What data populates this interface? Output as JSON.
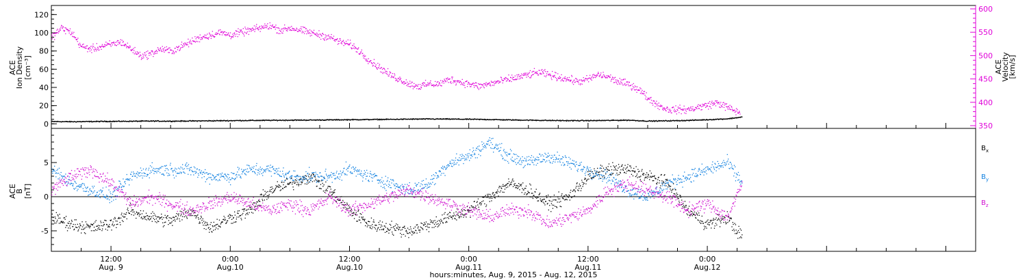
{
  "figure": {
    "xlabel": "hours:minutes, Aug.  9, 2015 - Aug. 12, 2015",
    "time_range_hours": [
      6.0,
      99.0
    ],
    "x_ticks": [
      {
        "t": 12,
        "time": "12:00",
        "date": "Aug. 9"
      },
      {
        "t": 24,
        "time": "0:00",
        "date": "Aug.10"
      },
      {
        "t": 36,
        "time": "12:00",
        "date": "Aug.10"
      },
      {
        "t": 48,
        "time": "0:00",
        "date": "Aug.11"
      },
      {
        "t": 60,
        "time": "12:00",
        "date": "Aug.11"
      },
      {
        "t": 72,
        "time": "0:00",
        "date": "Aug.12"
      }
    ]
  },
  "chart_data": [
    {
      "type": "scatter",
      "panel": "top",
      "ylabel_left": [
        "ACE",
        "Ion Density",
        "[cm⁻³]"
      ],
      "ylabel_right": [
        "ACE",
        "Velocity",
        "[km/s]"
      ],
      "ylim_left": [
        -5,
        130
      ],
      "yticks_left": [
        0,
        20,
        40,
        60,
        80,
        100,
        120
      ],
      "ylim_right": [
        350,
        600
      ],
      "yticks_right": [
        350,
        400,
        450,
        500,
        550,
        600
      ],
      "colors": {
        "density": "#000000",
        "velocity": "#e000d8"
      },
      "series": [
        {
          "name": "Ion Density",
          "axis": "left",
          "x_hours": [
            6,
            8,
            10,
            12,
            14,
            16,
            18,
            20,
            22,
            24,
            26,
            28,
            30,
            32,
            34,
            36,
            38,
            40,
            42,
            44,
            46,
            48,
            50,
            52,
            54,
            56,
            58,
            60,
            62,
            64,
            66,
            68,
            70,
            72,
            74,
            75.5
          ],
          "values": [
            3,
            2.8,
            3,
            3.2,
            3.3,
            3.5,
            3.4,
            3.6,
            3.8,
            4,
            4.2,
            4.3,
            4.5,
            4.6,
            4.8,
            5,
            5.2,
            5.4,
            5.6,
            5.8,
            5.7,
            5.5,
            5.2,
            4.8,
            4.5,
            4.2,
            4,
            4,
            4.2,
            4.5,
            3.5,
            3.8,
            4.2,
            5,
            6,
            8
          ]
        },
        {
          "name": "Velocity",
          "axis": "right",
          "x_hours": [
            6,
            7,
            8,
            9,
            10,
            11,
            12,
            13,
            14,
            15,
            16,
            17,
            18,
            19,
            20,
            21,
            22,
            23,
            24,
            25,
            26,
            27,
            28,
            29,
            30,
            31,
            32,
            33,
            34,
            35,
            36,
            37,
            38,
            39,
            40,
            41,
            42,
            43,
            44,
            45,
            46,
            47,
            48,
            49,
            50,
            51,
            52,
            53,
            54,
            55,
            56,
            57,
            58,
            59,
            60,
            61,
            62,
            63,
            64,
            65,
            66,
            67,
            68,
            69,
            70,
            71,
            72,
            73,
            74,
            75
          ],
          "values": [
            540,
            560,
            550,
            520,
            515,
            520,
            525,
            530,
            515,
            500,
            505,
            515,
            510,
            520,
            530,
            540,
            545,
            550,
            545,
            550,
            555,
            560,
            565,
            555,
            560,
            555,
            550,
            545,
            540,
            530,
            525,
            510,
            490,
            475,
            460,
            450,
            440,
            435,
            440,
            440,
            450,
            445,
            440,
            435,
            440,
            445,
            450,
            455,
            460,
            465,
            460,
            455,
            450,
            445,
            450,
            460,
            455,
            445,
            440,
            430,
            410,
            395,
            385,
            385,
            385,
            390,
            395,
            400,
            390,
            380
          ]
        }
      ]
    },
    {
      "type": "scatter",
      "panel": "bottom",
      "ylabel_left": [
        "ACE",
        "B",
        "[nT]"
      ],
      "ylim": [
        -8,
        10
      ],
      "yticks": [
        -5,
        0,
        5
      ],
      "colors": {
        "Bx": "#000000",
        "By": "#1080e0",
        "Bz": "#d010d0"
      },
      "series": [
        {
          "name": "Bx",
          "x_hours": [
            6,
            8,
            10,
            12,
            14,
            16,
            18,
            20,
            22,
            24,
            26,
            28,
            30,
            32,
            34,
            36,
            38,
            40,
            42,
            44,
            46,
            48,
            50,
            52,
            54,
            56,
            58,
            60,
            62,
            64,
            66,
            68,
            70,
            72,
            74,
            75.5
          ],
          "values": [
            -3,
            -4,
            -4.5,
            -4,
            -2,
            -3,
            -3.5,
            -2,
            -4.5,
            -3,
            -2,
            1,
            2,
            3,
            1,
            -2,
            -4,
            -4.5,
            -5,
            -4,
            -3,
            -2,
            0,
            2,
            1,
            -1,
            0,
            3,
            4,
            4,
            3,
            2,
            -2,
            -4,
            -3,
            -6
          ]
        },
        {
          "name": "By",
          "x_hours": [
            6,
            8,
            10,
            12,
            14,
            16,
            18,
            20,
            22,
            24,
            26,
            28,
            30,
            32,
            34,
            36,
            38,
            40,
            42,
            44,
            46,
            48,
            50,
            52,
            54,
            56,
            58,
            60,
            62,
            64,
            66,
            68,
            70,
            72,
            74,
            75.5
          ],
          "values": [
            4,
            2,
            1,
            0,
            3,
            4,
            4,
            4,
            3,
            3,
            4,
            4,
            3,
            3,
            3,
            4,
            3,
            2,
            1,
            2,
            5,
            6,
            8,
            6,
            5,
            6,
            5,
            4,
            3,
            1,
            0,
            2,
            3,
            4,
            5,
            2
          ]
        },
        {
          "name": "Bz",
          "x_hours": [
            6,
            8,
            10,
            12,
            14,
            16,
            18,
            20,
            22,
            24,
            26,
            28,
            30,
            32,
            34,
            36,
            38,
            40,
            42,
            44,
            46,
            48,
            50,
            52,
            54,
            56,
            58,
            60,
            62,
            64,
            66,
            68,
            70,
            72,
            74,
            75.5
          ],
          "values": [
            1,
            3,
            4,
            2,
            -1,
            0,
            -1,
            -2,
            -1,
            0,
            -1,
            -2,
            -1,
            -2,
            0,
            -2,
            -1,
            0,
            1,
            0,
            -1,
            -2,
            -3,
            -2,
            -2,
            -4,
            -3,
            -2,
            1,
            2,
            1,
            0,
            -2,
            -1,
            -3,
            2
          ]
        }
      ]
    }
  ]
}
